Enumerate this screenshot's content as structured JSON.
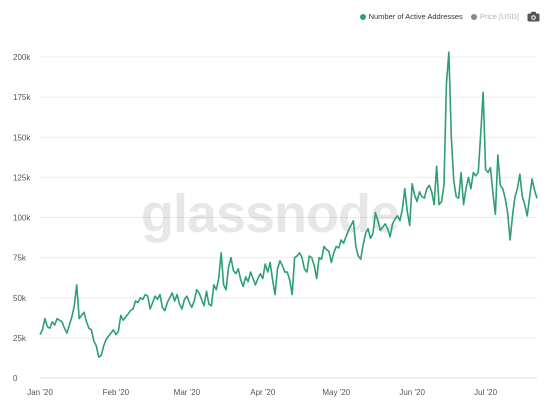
{
  "legend": {
    "items": [
      {
        "label": "Number of Active Addresses",
        "color": "#2e9e73"
      },
      {
        "label": "Price [USD]",
        "color": "#888888"
      }
    ],
    "camera_icon": "camera-icon"
  },
  "watermark": "glassnode",
  "chart_data": {
    "type": "line",
    "title": "",
    "xlabel": "",
    "ylabel": "",
    "x_range": [
      "2020-01-01",
      "2020-07-22"
    ],
    "ylim": [
      0,
      200000
    ],
    "grid": {
      "x": false,
      "y": true
    },
    "legend_position": "top-right",
    "y_ticks": [
      0,
      25000,
      50000,
      75000,
      100000,
      125000,
      150000,
      175000,
      200000
    ],
    "y_tick_labels": [
      "0",
      "25k",
      "50k",
      "75k",
      "100k",
      "125k",
      "150k",
      "175k",
      "200k"
    ],
    "x_ticks": [
      "2020-01-01",
      "2020-02-01",
      "2020-03-01",
      "2020-04-01",
      "2020-05-01",
      "2020-06-01",
      "2020-07-01"
    ],
    "x_tick_labels": [
      "Jan '20",
      "Feb '20",
      "Mar '20",
      "Apr '20",
      "May '20",
      "Jun '20",
      "Jul '20"
    ],
    "series": [
      {
        "name": "Number of Active Addresses",
        "color": "#2e9e73",
        "points": [
          [
            "2020-01-01",
            27000
          ],
          [
            "2020-01-02",
            30000
          ],
          [
            "2020-01-03",
            37000
          ],
          [
            "2020-01-04",
            32000
          ],
          [
            "2020-01-05",
            31000
          ],
          [
            "2020-01-06",
            35000
          ],
          [
            "2020-01-07",
            33000
          ],
          [
            "2020-01-08",
            37000
          ],
          [
            "2020-01-09",
            36000
          ],
          [
            "2020-01-10",
            35000
          ],
          [
            "2020-01-11",
            31000
          ],
          [
            "2020-01-12",
            28000
          ],
          [
            "2020-01-13",
            33000
          ],
          [
            "2020-01-14",
            38000
          ],
          [
            "2020-01-15",
            45000
          ],
          [
            "2020-01-16",
            58000
          ],
          [
            "2020-01-17",
            37000
          ],
          [
            "2020-01-18",
            39000
          ],
          [
            "2020-01-19",
            41000
          ],
          [
            "2020-01-20",
            35000
          ],
          [
            "2020-01-21",
            31000
          ],
          [
            "2020-01-22",
            30000
          ],
          [
            "2020-01-23",
            23000
          ],
          [
            "2020-01-24",
            20000
          ],
          [
            "2020-01-25",
            13000
          ],
          [
            "2020-01-26",
            14000
          ],
          [
            "2020-01-27",
            20000
          ],
          [
            "2020-01-28",
            24000
          ],
          [
            "2020-01-29",
            26000
          ],
          [
            "2020-01-30",
            28000
          ],
          [
            "2020-01-31",
            30000
          ],
          [
            "2020-02-01",
            27000
          ],
          [
            "2020-02-02",
            29000
          ],
          [
            "2020-02-03",
            39000
          ],
          [
            "2020-02-04",
            36000
          ],
          [
            "2020-02-05",
            38000
          ],
          [
            "2020-02-06",
            40000
          ],
          [
            "2020-02-07",
            42000
          ],
          [
            "2020-02-08",
            43000
          ],
          [
            "2020-02-09",
            48000
          ],
          [
            "2020-02-10",
            47000
          ],
          [
            "2020-02-11",
            50000
          ],
          [
            "2020-02-12",
            49000
          ],
          [
            "2020-02-13",
            52000
          ],
          [
            "2020-02-14",
            51000
          ],
          [
            "2020-02-15",
            43000
          ],
          [
            "2020-02-16",
            47000
          ],
          [
            "2020-02-17",
            51000
          ],
          [
            "2020-02-18",
            49000
          ],
          [
            "2020-02-19",
            52000
          ],
          [
            "2020-02-20",
            44000
          ],
          [
            "2020-02-21",
            42000
          ],
          [
            "2020-02-22",
            47000
          ],
          [
            "2020-02-23",
            50000
          ],
          [
            "2020-02-24",
            53000
          ],
          [
            "2020-02-25",
            48000
          ],
          [
            "2020-02-26",
            52000
          ],
          [
            "2020-02-27",
            46000
          ],
          [
            "2020-02-28",
            43000
          ],
          [
            "2020-02-29",
            49000
          ],
          [
            "2020-03-01",
            51000
          ],
          [
            "2020-03-02",
            47000
          ],
          [
            "2020-03-03",
            44000
          ],
          [
            "2020-03-04",
            48000
          ],
          [
            "2020-03-05",
            55000
          ],
          [
            "2020-03-06",
            53000
          ],
          [
            "2020-03-07",
            49000
          ],
          [
            "2020-03-08",
            45000
          ],
          [
            "2020-03-09",
            54000
          ],
          [
            "2020-03-10",
            46000
          ],
          [
            "2020-03-11",
            45000
          ],
          [
            "2020-03-12",
            58000
          ],
          [
            "2020-03-13",
            55000
          ],
          [
            "2020-03-14",
            62000
          ],
          [
            "2020-03-15",
            78000
          ],
          [
            "2020-03-16",
            58000
          ],
          [
            "2020-03-17",
            55000
          ],
          [
            "2020-03-18",
            69000
          ],
          [
            "2020-03-19",
            75000
          ],
          [
            "2020-03-20",
            67000
          ],
          [
            "2020-03-21",
            65000
          ],
          [
            "2020-03-22",
            68000
          ],
          [
            "2020-03-23",
            61000
          ],
          [
            "2020-03-24",
            57000
          ],
          [
            "2020-03-25",
            63000
          ],
          [
            "2020-03-26",
            60000
          ],
          [
            "2020-03-27",
            66000
          ],
          [
            "2020-03-28",
            62000
          ],
          [
            "2020-03-29",
            58000
          ],
          [
            "2020-03-30",
            62000
          ],
          [
            "2020-03-31",
            65000
          ],
          [
            "2020-04-01",
            62000
          ],
          [
            "2020-04-02",
            71000
          ],
          [
            "2020-04-03",
            66000
          ],
          [
            "2020-04-04",
            72000
          ],
          [
            "2020-04-05",
            61000
          ],
          [
            "2020-04-06",
            52000
          ],
          [
            "2020-04-07",
            68000
          ],
          [
            "2020-04-08",
            73000
          ],
          [
            "2020-04-09",
            70000
          ],
          [
            "2020-04-10",
            66000
          ],
          [
            "2020-04-11",
            66000
          ],
          [
            "2020-04-12",
            61000
          ],
          [
            "2020-04-13",
            52000
          ],
          [
            "2020-04-14",
            75000
          ],
          [
            "2020-04-15",
            76000
          ],
          [
            "2020-04-16",
            78000
          ],
          [
            "2020-04-17",
            75000
          ],
          [
            "2020-04-18",
            68000
          ],
          [
            "2020-04-19",
            66000
          ],
          [
            "2020-04-20",
            76000
          ],
          [
            "2020-04-21",
            75000
          ],
          [
            "2020-04-22",
            70000
          ],
          [
            "2020-04-23",
            62000
          ],
          [
            "2020-04-24",
            75000
          ],
          [
            "2020-04-25",
            74000
          ],
          [
            "2020-04-26",
            82000
          ],
          [
            "2020-04-27",
            80000
          ],
          [
            "2020-04-28",
            79000
          ],
          [
            "2020-04-29",
            72000
          ],
          [
            "2020-04-30",
            78000
          ],
          [
            "2020-05-01",
            82000
          ],
          [
            "2020-05-02",
            81000
          ],
          [
            "2020-05-03",
            86000
          ],
          [
            "2020-05-04",
            84000
          ],
          [
            "2020-05-05",
            88000
          ],
          [
            "2020-05-06",
            92000
          ],
          [
            "2020-05-07",
            95000
          ],
          [
            "2020-05-08",
            98000
          ],
          [
            "2020-05-09",
            82000
          ],
          [
            "2020-05-10",
            76000
          ],
          [
            "2020-05-11",
            74000
          ],
          [
            "2020-05-12",
            83000
          ],
          [
            "2020-05-13",
            90000
          ],
          [
            "2020-05-14",
            93000
          ],
          [
            "2020-05-15",
            87000
          ],
          [
            "2020-05-16",
            90000
          ],
          [
            "2020-05-17",
            103000
          ],
          [
            "2020-05-18",
            98000
          ],
          [
            "2020-05-19",
            92000
          ],
          [
            "2020-05-20",
            94000
          ],
          [
            "2020-05-21",
            96000
          ],
          [
            "2020-05-22",
            93000
          ],
          [
            "2020-05-23",
            88000
          ],
          [
            "2020-05-24",
            96000
          ],
          [
            "2020-05-25",
            99000
          ],
          [
            "2020-05-26",
            101000
          ],
          [
            "2020-05-27",
            98000
          ],
          [
            "2020-05-28",
            105000
          ],
          [
            "2020-05-29",
            118000
          ],
          [
            "2020-05-30",
            104000
          ],
          [
            "2020-05-31",
            95000
          ],
          [
            "2020-06-01",
            121000
          ],
          [
            "2020-06-02",
            114000
          ],
          [
            "2020-06-03",
            110000
          ],
          [
            "2020-06-04",
            116000
          ],
          [
            "2020-06-05",
            113000
          ],
          [
            "2020-06-06",
            112000
          ],
          [
            "2020-06-07",
            118000
          ],
          [
            "2020-06-08",
            120000
          ],
          [
            "2020-06-09",
            116000
          ],
          [
            "2020-06-10",
            108000
          ],
          [
            "2020-06-11",
            132000
          ],
          [
            "2020-06-12",
            108000
          ],
          [
            "2020-06-13",
            110000
          ],
          [
            "2020-06-14",
            120000
          ],
          [
            "2020-06-15",
            183000
          ],
          [
            "2020-06-16",
            203000
          ],
          [
            "2020-06-17",
            150000
          ],
          [
            "2020-06-18",
            123000
          ],
          [
            "2020-06-19",
            113000
          ],
          [
            "2020-06-20",
            112000
          ],
          [
            "2020-06-21",
            128000
          ],
          [
            "2020-06-22",
            108000
          ],
          [
            "2020-06-23",
            118000
          ],
          [
            "2020-06-24",
            125000
          ],
          [
            "2020-06-25",
            118000
          ],
          [
            "2020-06-26",
            128000
          ],
          [
            "2020-06-27",
            126000
          ],
          [
            "2020-06-28",
            128000
          ],
          [
            "2020-06-29",
            152000
          ],
          [
            "2020-06-30",
            178000
          ],
          [
            "2020-07-01",
            130000
          ],
          [
            "2020-07-02",
            128000
          ],
          [
            "2020-07-03",
            131000
          ],
          [
            "2020-07-04",
            115000
          ],
          [
            "2020-07-05",
            102000
          ],
          [
            "2020-07-06",
            139000
          ],
          [
            "2020-07-07",
            120000
          ],
          [
            "2020-07-08",
            118000
          ],
          [
            "2020-07-09",
            112000
          ],
          [
            "2020-07-10",
            103000
          ],
          [
            "2020-07-11",
            86000
          ],
          [
            "2020-07-12",
            101000
          ],
          [
            "2020-07-13",
            113000
          ],
          [
            "2020-07-14",
            118000
          ],
          [
            "2020-07-15",
            127000
          ],
          [
            "2020-07-16",
            113000
          ],
          [
            "2020-07-17",
            108000
          ],
          [
            "2020-07-18",
            101000
          ],
          [
            "2020-07-19",
            113000
          ],
          [
            "2020-07-20",
            124000
          ],
          [
            "2020-07-21",
            117000
          ],
          [
            "2020-07-22",
            112000
          ]
        ]
      }
    ]
  }
}
